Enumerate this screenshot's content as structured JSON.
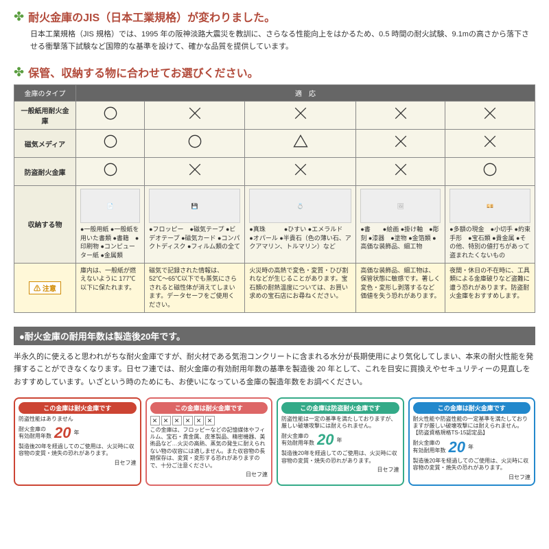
{
  "section1": {
    "title": "耐火金庫のJIS（日本工業規格）が変わりました。",
    "intro": "日本工業規格（JIS 規格）では、1995 年の阪神淡路大震災を教訓に、さらなる性能向上をはかるため、0.5 時間の耐火試験、9.1mの高さから落下させる衝撃落下試験など国際的な基準を設けて、確かな品質を提供しています。"
  },
  "section2": {
    "title": "保管、収納する物に合わせてお選びください。",
    "table": {
      "header_type": "金庫のタイプ",
      "header_use": "適　応",
      "rows": [
        {
          "label": "一般紙用耐火金庫",
          "symbols": [
            "circle",
            "cross",
            "cross",
            "cross",
            "cross"
          ]
        },
        {
          "label": "磁気メディア",
          "symbols": [
            "circle",
            "circle",
            "triangle",
            "cross",
            "cross"
          ]
        },
        {
          "label": "防盗耐火金庫",
          "symbols": [
            "circle",
            "cross",
            "cross",
            "cross",
            "circle"
          ]
        }
      ],
      "items_label": "収納する物",
      "items": [
        "●一般用紙\n●一般紙を用いた書類\n●書籍　●印刷物\n●コンピューター紙\n●金属類",
        "●フロッピー　●磁気テープ\n●ビデオテープ\n●磁気カード\n●コンパクトディスク\n●フィルム類の全て",
        "●真珠　　　●ひすい\n●エメラルド　●オパール\n●半貴石（色の薄い石、アクアマリン、トルマリン）など",
        "●書　　●絵画\n●掛け軸　●彫刻\n●漆器　●塗物\n●金箔類\n●高価な装飾品、細工物",
        "●多額の現金　●小切手\n●約束手形　●宝石類\n●貴金属\n●その他、特別の値打ちがあって盗まれたくないもの"
      ],
      "caution_label": "⚠ 注意",
      "cautions": [
        "庫内は、一般紙が燃えないように 177℃以下に保たれます。",
        "磁気で記録された情報は、52℃〜65℃以下でも蒸気にさらされると磁性体が消えてしまいます。データセーフをご使用ください。",
        "火災時の高熱で変色・変質・ひび割れなどが生じることがあります。宝石類の耐熱温度については、お買い求めの宝石店にお尋ねください。",
        "高価な装飾品、細工物は、保管状態に敏感です。著しく変色・変形し剥落するなど価値を失う恐れがあります。",
        "夜間・休日の不在時に、工具類による金庫破りなど盗難に遭う恐れがあります。防盗耐火金庫をおすすめします。"
      ]
    }
  },
  "section3": {
    "bar": "●耐火金庫の耐用年数は製造後20年です。",
    "text": "半永久的に使えると思われがちな耐火金庫ですが、耐火材である気泡コンクリートに含まれる水分が長期使用により気化してしまい、本来の耐火性能を発揮することができなくなります。日セフ連では、耐火金庫の有効耐用年数の基準を製造後 20 年として、これを目安に買換えやセキュリティーの見直しをおすすめしています。いざという時のためにも、お使いになっている金庫の製造年数をお調べください。"
  },
  "cards": [
    {
      "cls": "card-red",
      "head": "この金庫は耐火金庫です",
      "sub1": "防盗性能はありません",
      "sub2": "耐火金庫の\n有効耐用年数",
      "years": "20",
      "years_suffix": "年",
      "note": "製造後20年を経過してのご使用は、火災時に収容物の変質・焼失の恐れがあります。",
      "brand": "日セフ連"
    },
    {
      "cls": "card-pink",
      "head": "この金庫は耐火金庫です",
      "icons": [
        "✕",
        "✕",
        "✕",
        "✕",
        "✕",
        "✕"
      ],
      "sub1": "この金庫は、フロッピーなどの記憶媒体やフィルム、宝石・貴金属、皮革製品、精密機器、美術品など…火災の高熱、蒸気の発生に耐えられない物の収容には適しません。また収容物の長期保存は、変質・変形する恐れがありますので、十分ご注意ください。",
      "brand": "日セフ連"
    },
    {
      "cls": "card-green",
      "head": "この金庫は防盗耐火金庫です",
      "sub1": "防盗性能は一定の基準を満たしておりますが、厳しい破壊攻撃には耐えられません。",
      "sub2": "耐火金庫の\n有効耐用年数",
      "years": "20",
      "years_suffix": "年",
      "note": "製造後20年を経過してのご使用は、火災時に収容物の変質・焼失の恐れがあります。",
      "brand": "日セフ連"
    },
    {
      "cls": "card-blue",
      "head": "この金庫は耐火金庫です",
      "sub1": "耐火性能や防盗性能の一定基準を満たしておりますが厳しい破壊攻撃には耐えられません。\n【防盗資格規格TS-15認定品】",
      "sub2": "耐火金庫の\n有効耐用年数",
      "years": "20",
      "years_suffix": "年",
      "note": "製造後20年を経過してのご使用は、火災時に収容物の変質・焼失の恐れがあります。",
      "brand": "日セフ連"
    }
  ]
}
